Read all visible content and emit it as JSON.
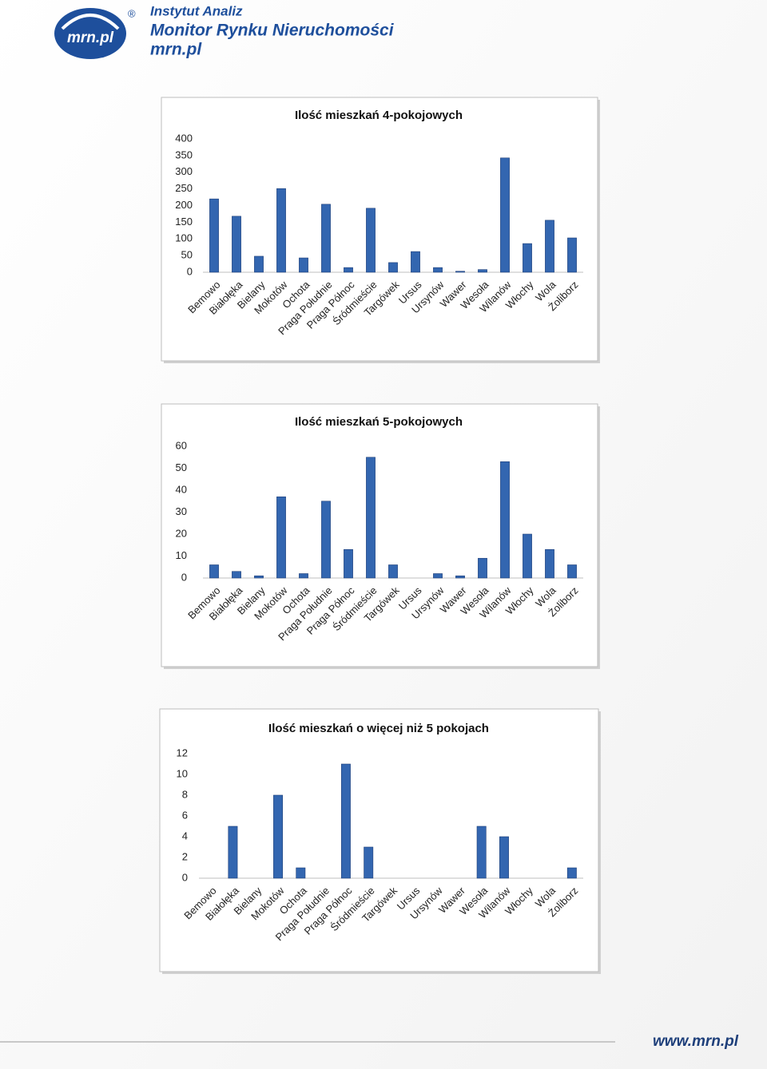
{
  "header": {
    "logo": "mrn.pl",
    "registered": "®",
    "institute": "Instytut Analiz",
    "product": "Monitor Rynku Nieruchomości",
    "site": "mrn.pl"
  },
  "footer": {
    "url": "www.mrn.pl"
  },
  "chart_data": [
    {
      "type": "bar",
      "title": "Ilość mieszkań 4-pokojowych",
      "categories": [
        "Bemowo",
        "Białołęka",
        "Bielany",
        "Mokotów",
        "Ochota",
        "Praga Południe",
        "Praga Północ",
        "Śródmieście",
        "Targówek",
        "Ursus",
        "Ursynów",
        "Wawer",
        "Wesoła",
        "Wilanów",
        "Włochy",
        "Wola",
        "Żoliborz"
      ],
      "values": [
        220,
        168,
        48,
        251,
        43,
        204,
        14,
        192,
        29,
        62,
        14,
        3,
        8,
        343,
        86,
        156,
        103
      ],
      "color": "#3366b0",
      "ylim": [
        0,
        400
      ],
      "yticks": [
        0,
        50,
        100,
        150,
        200,
        250,
        300,
        350,
        400
      ],
      "grid": false
    },
    {
      "type": "bar",
      "title": "Ilość mieszkań 5-pokojowych",
      "categories": [
        "Bemowo",
        "Białołęka",
        "Bielany",
        "Mokotów",
        "Ochota",
        "Praga Południe",
        "Praga Północ",
        "Śródmieście",
        "Targówek",
        "Ursus",
        "Ursynów",
        "Wawer",
        "Wesoła",
        "Wilanów",
        "Włochy",
        "Wola",
        "Żoliborz"
      ],
      "values": [
        6,
        3,
        1,
        37,
        2,
        35,
        13,
        55,
        6,
        0,
        2,
        1,
        9,
        53,
        20,
        13,
        6
      ],
      "color": "#3366b0",
      "ylim": [
        0,
        60
      ],
      "yticks": [
        0,
        10,
        20,
        30,
        40,
        50,
        60
      ],
      "grid": false
    },
    {
      "type": "bar",
      "title": "Ilość mieszkań o więcej niż 5 pokojach",
      "categories": [
        "Bemowo",
        "Białołęka",
        "Bielany",
        "Mokotów",
        "Ochota",
        "Praga Południe",
        "Praga Północ",
        "Śródmieście",
        "Targówek",
        "Ursus",
        "Ursynów",
        "Wawer",
        "Wesoła",
        "Wilanów",
        "Włochy",
        "Wola",
        "Żoliborz"
      ],
      "values": [
        0,
        5,
        0,
        8,
        1,
        0,
        11,
        3,
        0,
        0,
        0,
        0,
        5,
        4,
        0,
        0,
        1
      ],
      "color": "#3366b0",
      "ylim": [
        0,
        12
      ],
      "yticks": [
        0,
        2,
        4,
        6,
        8,
        10,
        12
      ],
      "grid": false
    }
  ]
}
